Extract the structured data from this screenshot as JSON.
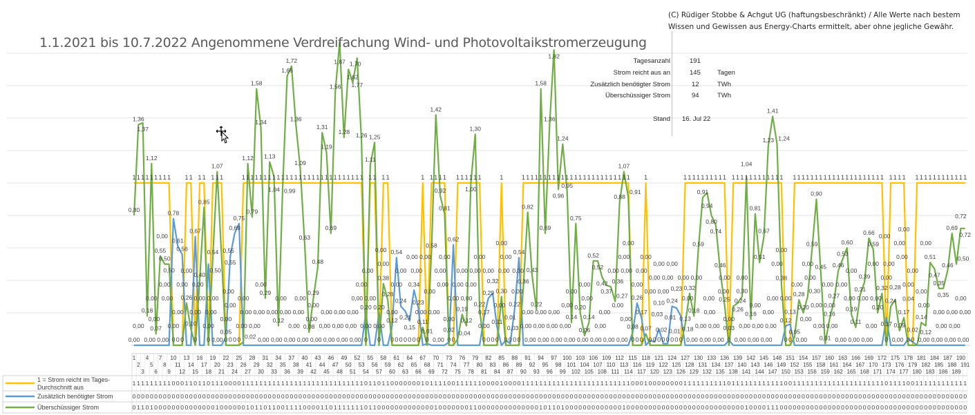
{
  "title": "1.1.2021 bis 10.7.2022 Angenommene Verdreifachung Wind- und Photovoltaikstromerzeugung",
  "copyright": "(C) Rüdiger Stobbe & Achgut UG (haftungsbeschränkt) / Alle Werte nach bestem Wissen und Gewissen aus Energy-Charts ermittelt, aber ohne jegliche Gewähr.",
  "info": {
    "rows": [
      {
        "label": "Tagesanzahl",
        "value": "191",
        "unit": ""
      },
      {
        "label": "Strom reicht aus an",
        "value": "145",
        "unit": "Tagen"
      },
      {
        "label": "Zusätzlich benötigter Strom",
        "value": "12",
        "unit": "TWh"
      },
      {
        "label": "Überschüssiger Strom",
        "value": "94",
        "unit": "TWh"
      }
    ],
    "stand_label": "Stand",
    "stand_value": "16. Jul 22"
  },
  "chart_data": {
    "type": "line",
    "title": "1.1.2021 bis 10.7.2022 Angenommene Verdreifachung Wind- und Photovoltaikstromerzeugung",
    "xlabel": "",
    "ylabel": "",
    "x_count": 191,
    "ylim": [
      0,
      1.8
    ],
    "grid": true,
    "legend_placement": "bottom-table",
    "colors": {
      "yellow": "#FFC000",
      "blue": "#5B9BD5",
      "green": "#70AD47"
    },
    "series": [
      {
        "key": "yellow",
        "name": "1 = Strom reicht im Tages- Durchschnitt aus",
        "color": "#FFC000",
        "values": [
          1,
          1,
          1,
          1,
          1,
          1,
          1,
          1,
          1,
          0,
          0,
          0,
          1,
          1,
          0,
          1,
          1,
          0,
          1,
          1,
          1,
          0,
          0,
          0,
          0,
          1,
          1,
          1,
          1,
          1,
          1,
          1,
          1,
          1,
          1,
          1,
          1,
          1,
          1,
          1,
          1,
          1,
          1,
          1,
          1,
          1,
          1,
          1,
          1,
          1,
          1,
          1,
          1,
          0,
          1,
          1,
          0,
          1,
          1,
          0,
          0,
          0,
          0,
          0,
          0,
          0,
          1,
          0,
          1,
          1,
          1,
          1,
          0,
          0,
          1,
          1,
          1,
          1,
          1,
          1,
          0,
          0,
          0,
          0,
          1,
          0,
          0,
          0,
          0,
          1,
          1,
          1,
          1,
          1,
          1,
          1,
          1,
          1,
          1,
          1,
          1,
          1,
          1,
          1,
          1,
          1,
          1,
          1,
          1,
          1,
          1,
          1,
          1,
          1,
          0,
          0,
          0,
          1,
          0,
          0,
          0,
          0,
          0,
          0,
          0,
          0,
          1,
          1,
          1,
          1,
          1,
          1,
          1,
          1,
          1,
          1,
          0,
          1,
          1,
          1,
          1,
          1,
          1,
          1,
          1,
          1,
          1,
          1,
          1,
          0,
          0,
          1,
          1,
          1,
          1,
          1,
          1,
          1,
          1,
          1,
          1,
          1,
          1,
          1,
          1,
          1,
          1,
          1,
          1,
          1,
          1,
          1,
          0,
          1,
          1,
          1,
          1,
          0,
          0,
          1,
          1,
          1,
          1,
          1,
          1,
          1,
          1,
          1,
          1,
          1,
          1
        ]
      },
      {
        "key": "blue",
        "name": "Zusätzlich benötigter Strom",
        "color": "#5B9BD5",
        "values": [
          0,
          0,
          0,
          0,
          0,
          0,
          0,
          0,
          0,
          0.78,
          0.61,
          0.56,
          0,
          0,
          0.67,
          0,
          0,
          0.5,
          0,
          0,
          0,
          0.05,
          0.55,
          0.69,
          0.75,
          0,
          0,
          0,
          0,
          0,
          0,
          0,
          0,
          0,
          0,
          0,
          0,
          0,
          0,
          0,
          0,
          0,
          0,
          0,
          0,
          0,
          0,
          0,
          0,
          0,
          0,
          0,
          0,
          0.2,
          0,
          0,
          0.2,
          0,
          0,
          0.12,
          0.54,
          0.24,
          0.21,
          0.15,
          0.34,
          0.23,
          0,
          0.01,
          0,
          0,
          0,
          0,
          0.02,
          0.62,
          0,
          0,
          0,
          0,
          0,
          0,
          0.17,
          0.29,
          0.32,
          0.11,
          0,
          0.03,
          0.01,
          0.22,
          0.54,
          0,
          0,
          0,
          0,
          0,
          0,
          0,
          0,
          0,
          0,
          0,
          0,
          0,
          0,
          0,
          0,
          0,
          0,
          0,
          0,
          0,
          0,
          0,
          0,
          0,
          0.08,
          0.26,
          0.17,
          0,
          0.03,
          0.02,
          0.1,
          0.01,
          0.01,
          0.24,
          0.23,
          0.18,
          0,
          0,
          0,
          0,
          0,
          0,
          0,
          0,
          0,
          0,
          0.03,
          0,
          0,
          0,
          0,
          0,
          0,
          0,
          0,
          0,
          0,
          0,
          0,
          0.12,
          0.13,
          0,
          0,
          0,
          0,
          0,
          0,
          0,
          0,
          0,
          0,
          0,
          0,
          0,
          0,
          0,
          0,
          0,
          0,
          0,
          0,
          0,
          0.17,
          0,
          0,
          0,
          0,
          0.04,
          0.02,
          0,
          0,
          0,
          0,
          0,
          0,
          0,
          0,
          0,
          0,
          0,
          0
        ]
      },
      {
        "key": "green",
        "name": "Überschüssiger Strom",
        "color": "#70AD47",
        "values": [
          0.8,
          1.36,
          1.37,
          0.18,
          1.12,
          0.07,
          0.55,
          0.5,
          0.5,
          0,
          0,
          0,
          0.26,
          0.1,
          0,
          0.4,
          0.85,
          0,
          0.54,
          1.07,
          0.55,
          0,
          0,
          0,
          0,
          0.02,
          1.12,
          0.79,
          1.58,
          1.34,
          0.29,
          1.13,
          1.04,
          0.12,
          0.99,
          1.66,
          1.72,
          1.36,
          1.09,
          0.63,
          0.08,
          0.29,
          0.48,
          1.31,
          1.19,
          0.69,
          1.56,
          1.87,
          1.28,
          1.7,
          1.62,
          1.77,
          1.26,
          0,
          1.11,
          1.25,
          0,
          0.38,
          0.28,
          0,
          0,
          0,
          0,
          0,
          0,
          0,
          0.11,
          0,
          0.58,
          1.42,
          0.92,
          0.81,
          0,
          0,
          0.04,
          0.19,
          0.12,
          1.0,
          1.3,
          0.22,
          0,
          0,
          0,
          0,
          0.3,
          0,
          0,
          0,
          0,
          0.36,
          0.82,
          0.43,
          0.22,
          1.58,
          0.69,
          1.36,
          1.82,
          0.96,
          1.24,
          0.95,
          0.14,
          0.75,
          0.2,
          0.06,
          0.14,
          0.52,
          0.52,
          0.42,
          0.37,
          0.36,
          0.27,
          0.88,
          1.07,
          0.91,
          0,
          0,
          0,
          0.07,
          0,
          0,
          0,
          0,
          0,
          0,
          0,
          0,
          0.13,
          0.32,
          0.18,
          0.59,
          0.91,
          0.94,
          0.8,
          0.74,
          0.46,
          0.25,
          0,
          0.24,
          0.26,
          0.3,
          1.04,
          0.16,
          0.81,
          0.51,
          0.67,
          1.23,
          1.41,
          1.24,
          0.38,
          0,
          0,
          0.05,
          0.28,
          0.2,
          0.3,
          0.59,
          0.9,
          0.45,
          0.01,
          0.16,
          0.27,
          0.46,
          0.53,
          0.6,
          0.19,
          0.11,
          0.31,
          0.39,
          0.66,
          0.59,
          0.2,
          0.32,
          0,
          0.24,
          0.28,
          0.09,
          0.17,
          0,
          0,
          0,
          0.14,
          0.12,
          0.51,
          0.47,
          0.35,
          0.35,
          0.46,
          0.69,
          0.5,
          0.72,
          0.72
        ]
      }
    ]
  }
}
